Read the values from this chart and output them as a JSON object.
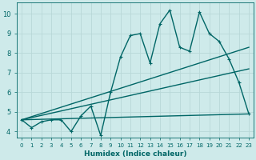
{
  "xlabel": "Humidex (Indice chaleur)",
  "ylabel": "",
  "bg_color": "#ceeaea",
  "line_color": "#006666",
  "grid_color": "#b8d8d8",
  "xlim": [
    -0.5,
    23.5
  ],
  "ylim": [
    3.7,
    10.6
  ],
  "yticks": [
    4,
    5,
    6,
    7,
    8,
    9,
    10
  ],
  "xticks": [
    0,
    1,
    2,
    3,
    4,
    5,
    6,
    7,
    8,
    9,
    10,
    11,
    12,
    13,
    14,
    15,
    16,
    17,
    18,
    19,
    20,
    21,
    22,
    23
  ],
  "line1_x": [
    0,
    1,
    2,
    3,
    4,
    5,
    6,
    7,
    8,
    9,
    10,
    11,
    12,
    13,
    14,
    15,
    16,
    17,
    18,
    19,
    20,
    21,
    22,
    23
  ],
  "line1_y": [
    4.6,
    4.2,
    4.5,
    4.6,
    4.6,
    4.0,
    4.8,
    5.3,
    3.8,
    6.0,
    7.8,
    8.9,
    9.0,
    7.5,
    9.5,
    10.2,
    8.3,
    8.1,
    10.1,
    9.0,
    8.6,
    7.7,
    6.5,
    4.9
  ],
  "line2_x": [
    0,
    23
  ],
  "line2_y": [
    4.6,
    4.9
  ],
  "line3_x": [
    0,
    23
  ],
  "line3_y": [
    4.6,
    8.3
  ],
  "line4_x": [
    0,
    23
  ],
  "line4_y": [
    4.6,
    7.2
  ],
  "marker_size": 2.5,
  "linewidth": 1.0
}
